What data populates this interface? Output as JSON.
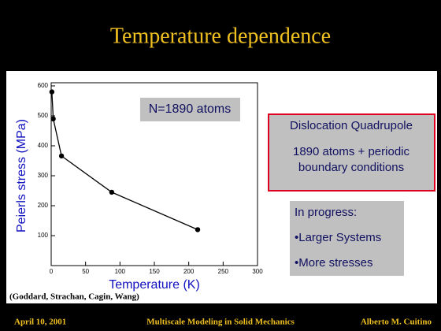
{
  "title": "Temperature dependence",
  "chart_data": {
    "type": "line",
    "annotation": "N=1890 atoms",
    "x_label": "Temperature (K)",
    "y_label": "Peierls stress (MPa)",
    "x": [
      1,
      3,
      15,
      88,
      213
    ],
    "values": [
      580,
      490,
      366,
      245,
      120
    ],
    "color": "#000000",
    "xlim": [
      0,
      300
    ],
    "xticks": [
      0,
      50,
      100,
      150,
      200,
      250,
      300
    ],
    "ylim": [
      0,
      600
    ],
    "yticks": [
      100,
      200,
      300,
      400,
      500,
      600
    ]
  },
  "citation": "(Goddard, Strachan, Cagin, Wang)",
  "box_method": {
    "lines": [
      "Dislocation Quadrupole",
      "1890 atoms + periodic",
      "boundary conditions"
    ]
  },
  "box_progress": {
    "lines": [
      "In progress:",
      "•Larger Systems",
      "•More stresses"
    ]
  },
  "footer": {
    "date": "April 10, 2001",
    "event": "Multiscale Modeling in Solid Mechanics",
    "author": "Alberto M. Cuitino"
  }
}
